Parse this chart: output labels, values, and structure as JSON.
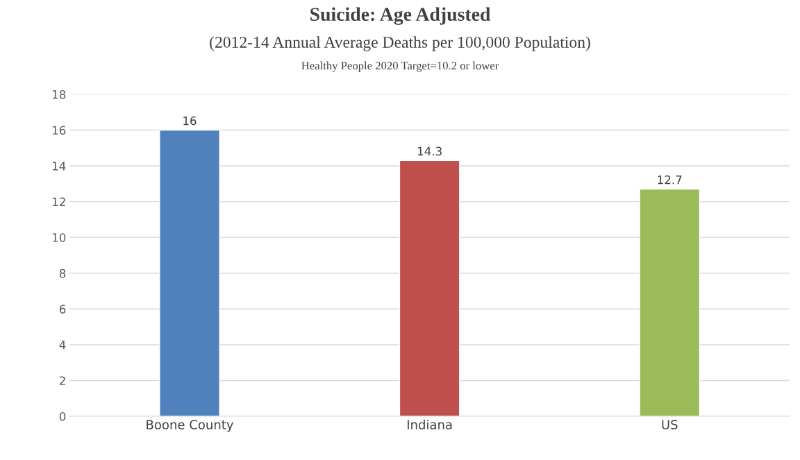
{
  "chart_data": {
    "type": "bar",
    "title": "Suicide: Age Adjusted",
    "subtitle": "(2012-14 Annual Average Deaths per 100,000 Population)",
    "annotations": [
      "Healthy People 2020 Target=10.2 or lower"
    ],
    "categories": [
      "Boone County",
      "Indiana",
      "US"
    ],
    "values": [
      16,
      14.3,
      12.7
    ],
    "colors": [
      "#4f81bd",
      "#c0504d",
      "#9bbb59"
    ],
    "ylim": [
      0,
      18
    ],
    "yticks": [
      0,
      2,
      4,
      6,
      8,
      10,
      12,
      14,
      16,
      18
    ],
    "grid": "y",
    "legend": false,
    "data_labels": true
  }
}
